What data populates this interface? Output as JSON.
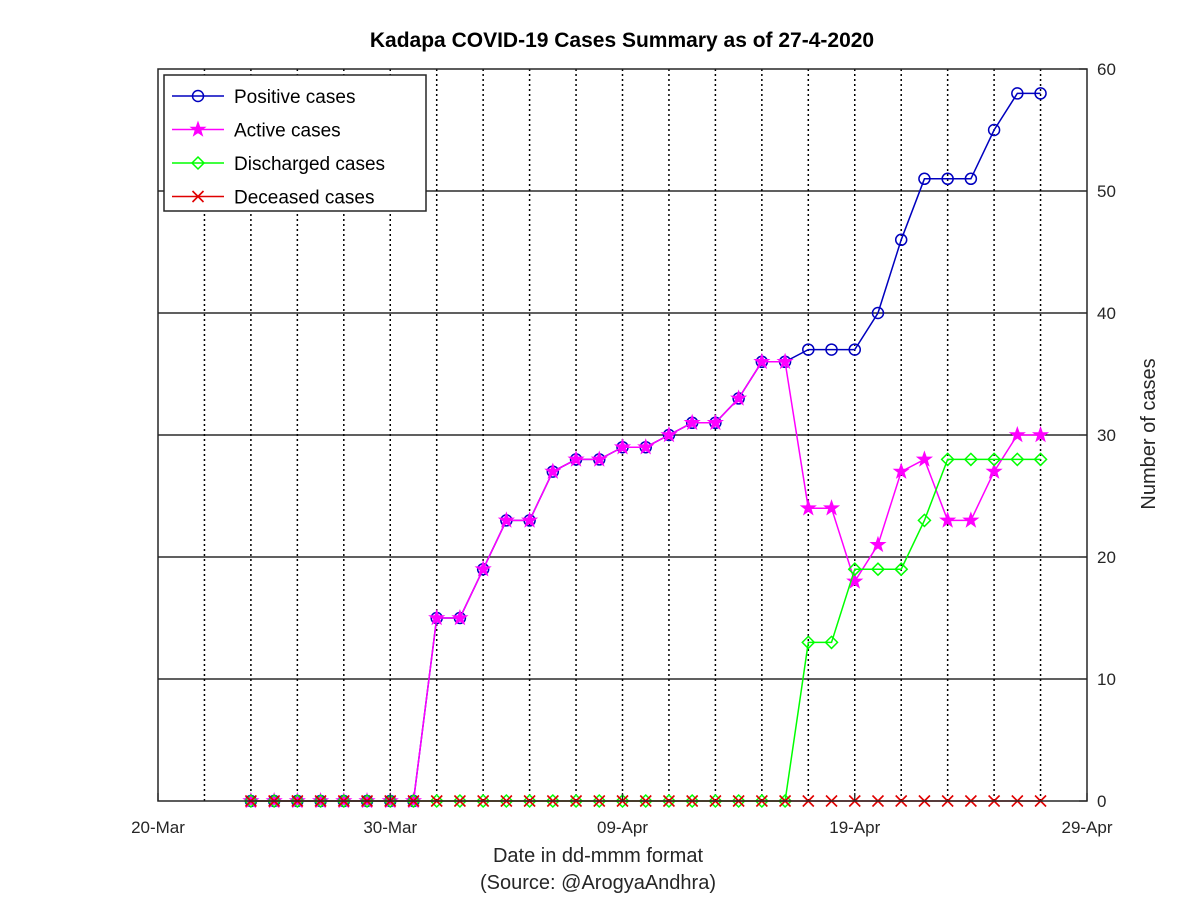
{
  "chart_data": {
    "type": "line",
    "title": "Kadapa COVID-19 Cases Summary as of 27-4-2020",
    "xlabel": "Date in dd-mmm format",
    "xlabel_note": "(Source: @ArogyaAndhra)",
    "ylabel": "Number of cases",
    "xlim": [
      "2020-03-20",
      "2020-04-29"
    ],
    "ylim": [
      0,
      60
    ],
    "x_ticks": [
      "20-Mar",
      "30-Mar",
      "09-Apr",
      "19-Apr",
      "29-Apr"
    ],
    "y_ticks": [
      "0",
      "10",
      "20",
      "30",
      "40",
      "50",
      "60"
    ],
    "y_axis_position": "right",
    "grid": true,
    "legend_position": "top-left",
    "x": [
      "2020-03-24",
      "2020-03-25",
      "2020-03-26",
      "2020-03-27",
      "2020-03-28",
      "2020-03-29",
      "2020-03-30",
      "2020-03-31",
      "2020-04-01",
      "2020-04-02",
      "2020-04-03",
      "2020-04-04",
      "2020-04-05",
      "2020-04-06",
      "2020-04-07",
      "2020-04-08",
      "2020-04-09",
      "2020-04-10",
      "2020-04-11",
      "2020-04-12",
      "2020-04-13",
      "2020-04-14",
      "2020-04-15",
      "2020-04-16",
      "2020-04-17",
      "2020-04-18",
      "2020-04-19",
      "2020-04-20",
      "2020-04-21",
      "2020-04-22",
      "2020-04-23",
      "2020-04-24",
      "2020-04-25",
      "2020-04-26",
      "2020-04-27"
    ],
    "series": [
      {
        "name": "Positive cases",
        "color": "#0000bf",
        "marker": "circle",
        "values": [
          0,
          0,
          0,
          0,
          0,
          0,
          0,
          0,
          15,
          15,
          19,
          23,
          23,
          27,
          28,
          28,
          29,
          29,
          30,
          31,
          31,
          33,
          36,
          36,
          37,
          37,
          37,
          40,
          46,
          51,
          51,
          51,
          55,
          58,
          58
        ]
      },
      {
        "name": "Active cases",
        "color": "#ff00ff",
        "marker": "star",
        "values": [
          0,
          0,
          0,
          0,
          0,
          0,
          0,
          0,
          15,
          15,
          19,
          23,
          23,
          27,
          28,
          28,
          29,
          29,
          30,
          31,
          31,
          33,
          36,
          36,
          24,
          24,
          18,
          21,
          27,
          28,
          23,
          23,
          27,
          30,
          30
        ]
      },
      {
        "name": "Discharged cases",
        "color": "#00ff00",
        "marker": "diamond",
        "values": [
          0,
          0,
          0,
          0,
          0,
          0,
          0,
          0,
          0,
          0,
          0,
          0,
          0,
          0,
          0,
          0,
          0,
          0,
          0,
          0,
          0,
          0,
          0,
          0,
          13,
          13,
          19,
          19,
          19,
          23,
          28,
          28,
          28,
          28,
          28
        ]
      },
      {
        "name": "Deceased cases",
        "color": "#e00000",
        "marker": "x",
        "values": [
          0,
          0,
          0,
          0,
          0,
          0,
          0,
          0,
          0,
          0,
          0,
          0,
          0,
          0,
          0,
          0,
          0,
          0,
          0,
          0,
          0,
          0,
          0,
          0,
          0,
          0,
          0,
          0,
          0,
          0,
          0,
          0,
          0,
          0,
          0
        ]
      }
    ]
  }
}
